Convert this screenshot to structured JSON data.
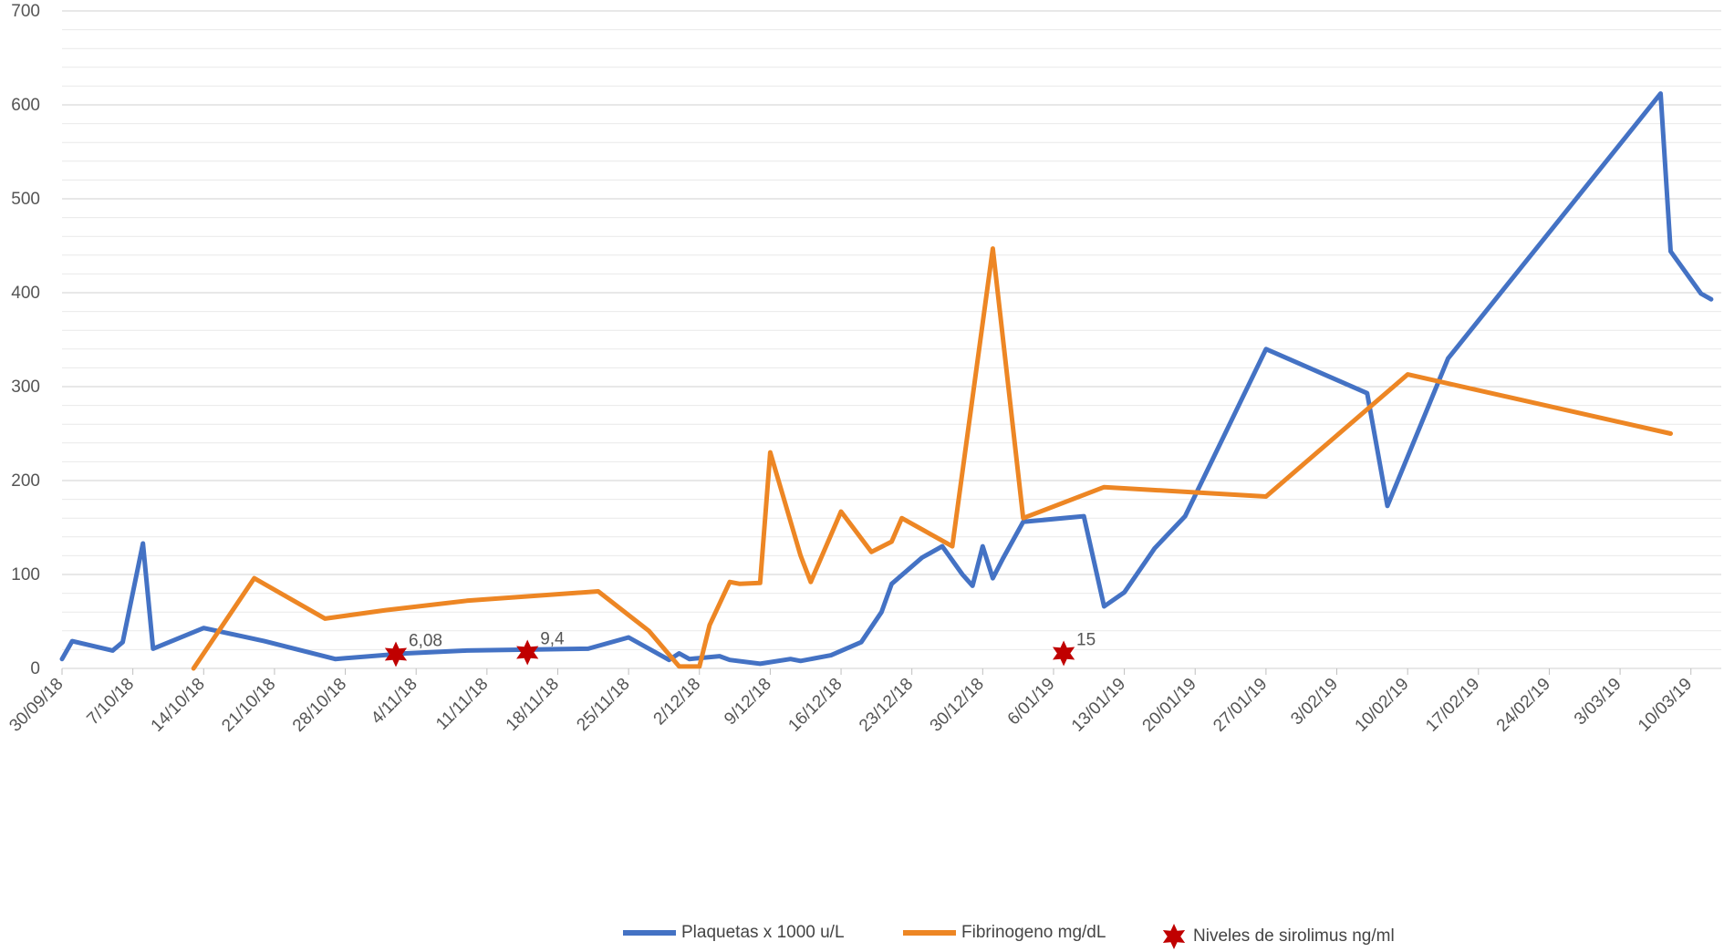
{
  "chart_data": {
    "type": "line",
    "ylim": [
      0,
      700
    ],
    "yticks": [
      0,
      100,
      200,
      300,
      400,
      500,
      600,
      700
    ],
    "y_minor_step": 20,
    "xlim": [
      "2018-09-30",
      "2019-03-13"
    ],
    "x_tick_dates": [
      "2018-09-30",
      "2018-10-07",
      "2018-10-14",
      "2018-10-21",
      "2018-10-28",
      "2018-11-04",
      "2018-11-11",
      "2018-11-18",
      "2018-11-25",
      "2018-12-02",
      "2018-12-09",
      "2018-12-16",
      "2018-12-23",
      "2018-12-30",
      "2019-01-06",
      "2019-01-13",
      "2019-01-20",
      "2019-01-27",
      "2019-02-03",
      "2019-02-10",
      "2019-02-17",
      "2019-02-24",
      "2019-03-03",
      "2019-03-10"
    ],
    "x_tick_labels": [
      "30/09/18",
      "7/10/18",
      "14/10/18",
      "21/10/18",
      "28/10/18",
      "4/11/18",
      "11/11/18",
      "18/11/18",
      "25/11/18",
      "2/12/18",
      "9/12/18",
      "16/12/18",
      "23/12/18",
      "30/12/18",
      "6/01/19",
      "13/01/19",
      "20/01/19",
      "27/01/19",
      "3/02/19",
      "10/02/19",
      "17/02/19",
      "24/02/19",
      "3/03/19",
      "10/03/19"
    ],
    "grid": true,
    "legend_position": "bottom",
    "series": [
      {
        "name": "Plaquetas x 1000 u/L",
        "color": "#4472C4",
        "points": [
          [
            "2018-09-30",
            10
          ],
          [
            "2018-10-01",
            29
          ],
          [
            "2018-10-05",
            19
          ],
          [
            "2018-10-06",
            28
          ],
          [
            "2018-10-08",
            133
          ],
          [
            "2018-10-09",
            21
          ],
          [
            "2018-10-14",
            43
          ],
          [
            "2018-10-20",
            29
          ],
          [
            "2018-10-27",
            10
          ],
          [
            "2018-11-03",
            16
          ],
          [
            "2018-11-09",
            19
          ],
          [
            "2018-11-21",
            21
          ],
          [
            "2018-11-25",
            33
          ],
          [
            "2018-11-29",
            9
          ],
          [
            "2018-11-30",
            16
          ],
          [
            "2018-12-01",
            10
          ],
          [
            "2018-12-04",
            13
          ],
          [
            "2018-12-05",
            9
          ],
          [
            "2018-12-08",
            5
          ],
          [
            "2018-12-11",
            10
          ],
          [
            "2018-12-12",
            8
          ],
          [
            "2018-12-15",
            14
          ],
          [
            "2018-12-18",
            28
          ],
          [
            "2018-12-20",
            60
          ],
          [
            "2018-12-21",
            90
          ],
          [
            "2018-12-24",
            118
          ],
          [
            "2018-12-26",
            130
          ],
          [
            "2018-12-28",
            100
          ],
          [
            "2018-12-29",
            88
          ],
          [
            "2018-12-30",
            130
          ],
          [
            "2018-12-31",
            96
          ],
          [
            "2019-01-01",
            117
          ],
          [
            "2019-01-03",
            156
          ],
          [
            "2019-01-09",
            162
          ],
          [
            "2019-01-11",
            66
          ],
          [
            "2019-01-13",
            81
          ],
          [
            "2019-01-16",
            128
          ],
          [
            "2019-01-19",
            162
          ],
          [
            "2019-01-27",
            340
          ],
          [
            "2019-02-06",
            293
          ],
          [
            "2019-02-08",
            173
          ],
          [
            "2019-02-14",
            330
          ],
          [
            "2019-03-07",
            612
          ],
          [
            "2019-03-08",
            444
          ],
          [
            "2019-03-11",
            399
          ],
          [
            "2019-03-12",
            393
          ]
        ]
      },
      {
        "name": "Fibrinogeno mg/dL",
        "color": "#ED8624",
        "points": [
          [
            "2018-10-13",
            0
          ],
          [
            "2018-10-19",
            96
          ],
          [
            "2018-10-26",
            53
          ],
          [
            "2018-11-01",
            62
          ],
          [
            "2018-11-09",
            72
          ],
          [
            "2018-11-22",
            82
          ],
          [
            "2018-11-27",
            40
          ],
          [
            "2018-11-30",
            2
          ],
          [
            "2018-12-02",
            2
          ],
          [
            "2018-12-03",
            46
          ],
          [
            "2018-12-05",
            92
          ],
          [
            "2018-12-06",
            90
          ],
          [
            "2018-12-08",
            91
          ],
          [
            "2018-12-09",
            230
          ],
          [
            "2018-12-12",
            120
          ],
          [
            "2018-12-13",
            92
          ],
          [
            "2018-12-16",
            167
          ],
          [
            "2018-12-19",
            124
          ],
          [
            "2018-12-21",
            135
          ],
          [
            "2018-12-22",
            160
          ],
          [
            "2018-12-27",
            130
          ],
          [
            "2018-12-31",
            447
          ],
          [
            "2019-01-03",
            160
          ],
          [
            "2019-01-11",
            193
          ],
          [
            "2019-01-27",
            183
          ],
          [
            "2019-02-10",
            313
          ],
          [
            "2019-03-08",
            250
          ]
        ]
      }
    ],
    "markers": {
      "name": "Niveles de sirolimus ng/ml",
      "color": "#C00000",
      "points": [
        {
          "x": "2018-11-02",
          "y": 15,
          "label": "6,08"
        },
        {
          "x": "2018-11-15",
          "y": 17,
          "label": "9,4"
        },
        {
          "x": "2019-01-07",
          "y": 16,
          "label": "15"
        }
      ]
    }
  },
  "legend": {
    "items": [
      {
        "label": "Plaquetas x 1000 u/L"
      },
      {
        "label": "Fibrinogeno mg/dL"
      },
      {
        "label": "Niveles de sirolimus ng/ml"
      }
    ]
  }
}
